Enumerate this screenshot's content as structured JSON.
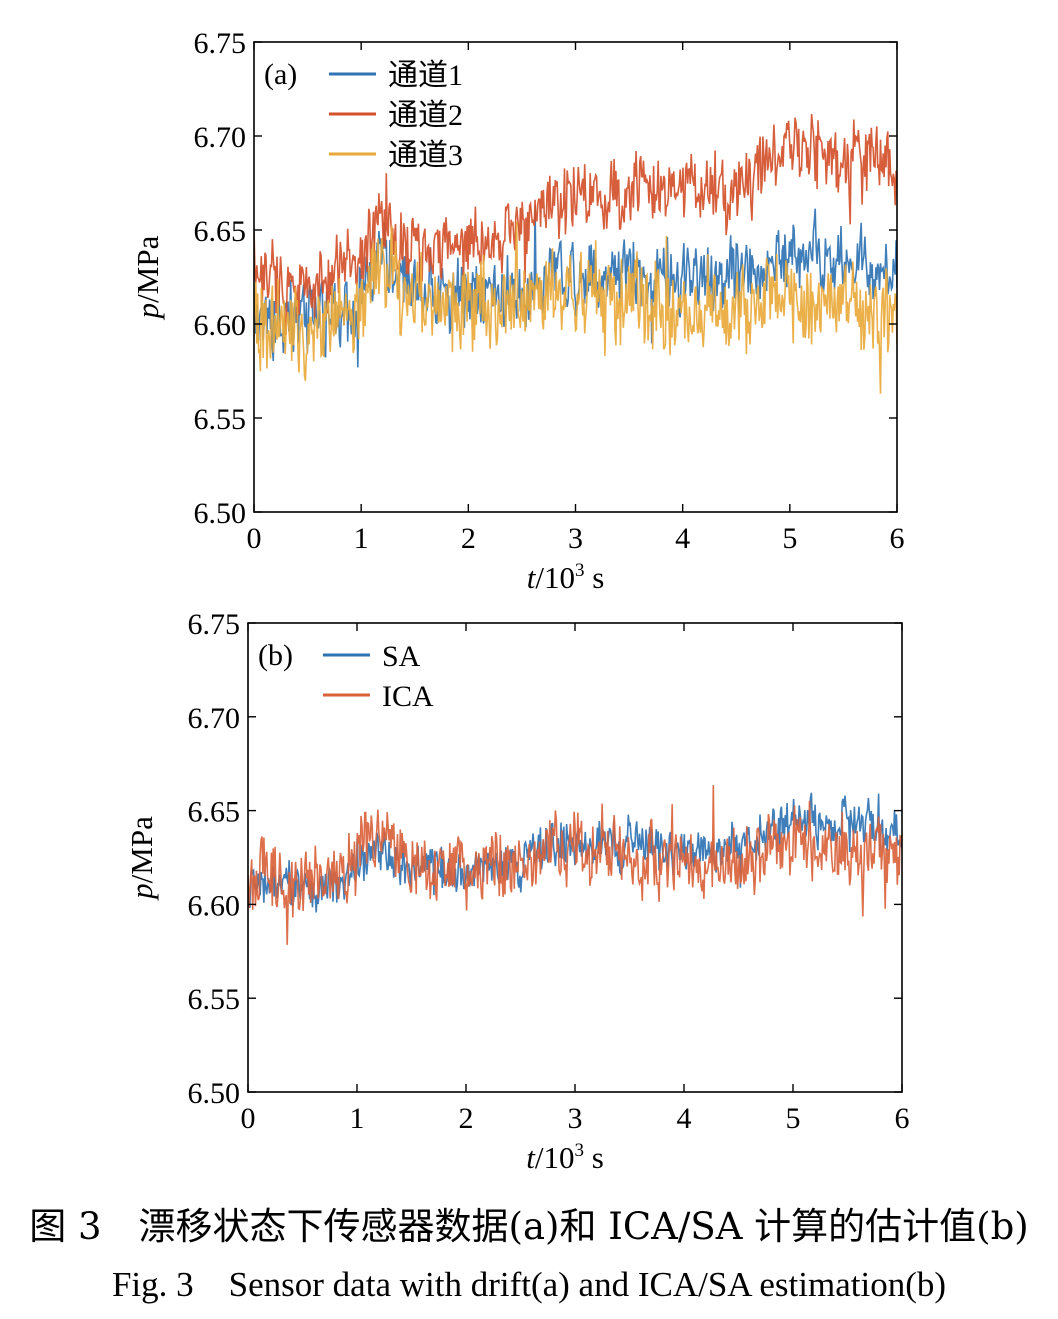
{
  "chart_data": [
    {
      "type": "line",
      "panel_label": "(a)",
      "xlabel_var": "t",
      "xlabel_unit": "/10",
      "xlabel_exp": "3",
      "xlabel_tail": " s",
      "ylabel_var": "p",
      "ylabel_unit": "/MPa",
      "xlim": [
        0,
        6
      ],
      "ylim": [
        6.5,
        6.75
      ],
      "xticks": [
        "0",
        "1",
        "2",
        "3",
        "4",
        "5",
        "6"
      ],
      "yticks": [
        "6.50",
        "6.55",
        "6.60",
        "6.65",
        "6.70",
        "6.75"
      ],
      "legend_position": "top-left",
      "grid": false,
      "series": [
        {
          "name": "通道1",
          "color": "#2f73b3",
          "x": [
            0,
            0.5,
            0.9,
            1.0,
            1.2,
            1.4,
            2.0,
            2.5,
            2.8,
            3.0,
            3.5,
            4.0,
            4.5,
            5.0,
            5.5,
            6.0
          ],
          "mean": [
            6.605,
            6.603,
            6.607,
            6.612,
            6.64,
            6.618,
            6.615,
            6.618,
            6.63,
            6.625,
            6.63,
            6.622,
            6.628,
            6.638,
            6.632,
            6.628
          ],
          "noise": 0.015
        },
        {
          "name": "通道2",
          "color": "#d4502a",
          "x": [
            0,
            0.5,
            0.9,
            1.0,
            1.2,
            1.4,
            2.0,
            2.5,
            2.8,
            3.0,
            3.5,
            4.0,
            4.5,
            5.0,
            5.5,
            6.0
          ],
          "mean": [
            6.625,
            6.622,
            6.628,
            6.635,
            6.655,
            6.64,
            6.642,
            6.652,
            6.665,
            6.668,
            6.67,
            6.668,
            6.672,
            6.695,
            6.688,
            6.685
          ],
          "noise": 0.015
        },
        {
          "name": "通道3",
          "color": "#e9a93a",
          "x": [
            0,
            0.5,
            0.9,
            1.0,
            1.2,
            1.4,
            2.0,
            2.5,
            2.8,
            3.0,
            3.5,
            4.0,
            4.5,
            5.0,
            5.5,
            6.0
          ],
          "mean": [
            6.6,
            6.598,
            6.605,
            6.61,
            6.635,
            6.612,
            6.608,
            6.61,
            6.622,
            6.618,
            6.612,
            6.605,
            6.605,
            6.612,
            6.608,
            6.605
          ],
          "noise": 0.02
        }
      ]
    },
    {
      "type": "line",
      "panel_label": "(b)",
      "xlabel_var": "t",
      "xlabel_unit": "/10",
      "xlabel_exp": "3",
      "xlabel_tail": " s",
      "ylabel_var": "p",
      "ylabel_unit": "/MPa",
      "xlim": [
        0,
        6
      ],
      "ylim": [
        6.5,
        6.75
      ],
      "xticks": [
        "0",
        "1",
        "2",
        "3",
        "4",
        "5",
        "6"
      ],
      "yticks": [
        "6.50",
        "6.55",
        "6.60",
        "6.65",
        "6.70",
        "6.75"
      ],
      "legend_position": "top-left",
      "grid": false,
      "series": [
        {
          "name": "SA",
          "color": "#2f73b3",
          "x": [
            0,
            0.5,
            0.9,
            1.0,
            1.2,
            1.4,
            2.0,
            2.5,
            2.8,
            3.0,
            3.5,
            4.0,
            4.5,
            5.0,
            5.5,
            6.0
          ],
          "mean": [
            6.61,
            6.608,
            6.612,
            6.618,
            6.63,
            6.622,
            6.618,
            6.622,
            6.632,
            6.63,
            6.633,
            6.628,
            6.632,
            6.645,
            6.645,
            6.635
          ],
          "noise": 0.01
        },
        {
          "name": "ICA",
          "color": "#d9623b",
          "x": [
            0,
            0.5,
            0.9,
            1.0,
            1.2,
            1.4,
            2.0,
            2.5,
            2.8,
            3.0,
            3.5,
            4.0,
            4.5,
            5.0,
            5.5,
            6.0
          ],
          "mean": [
            6.615,
            6.612,
            6.615,
            6.625,
            6.645,
            6.625,
            6.62,
            6.622,
            6.632,
            6.628,
            6.628,
            6.622,
            6.62,
            6.632,
            6.63,
            6.62
          ],
          "noise": 0.015
        }
      ]
    }
  ],
  "caption": {
    "cn": "图 3　漂移状态下传感器数据(a)和 ICA/SA 计算的估计值(b)",
    "en": "Fig. 3　Sensor data with drift(a) and ICA/SA estimation(b)"
  }
}
